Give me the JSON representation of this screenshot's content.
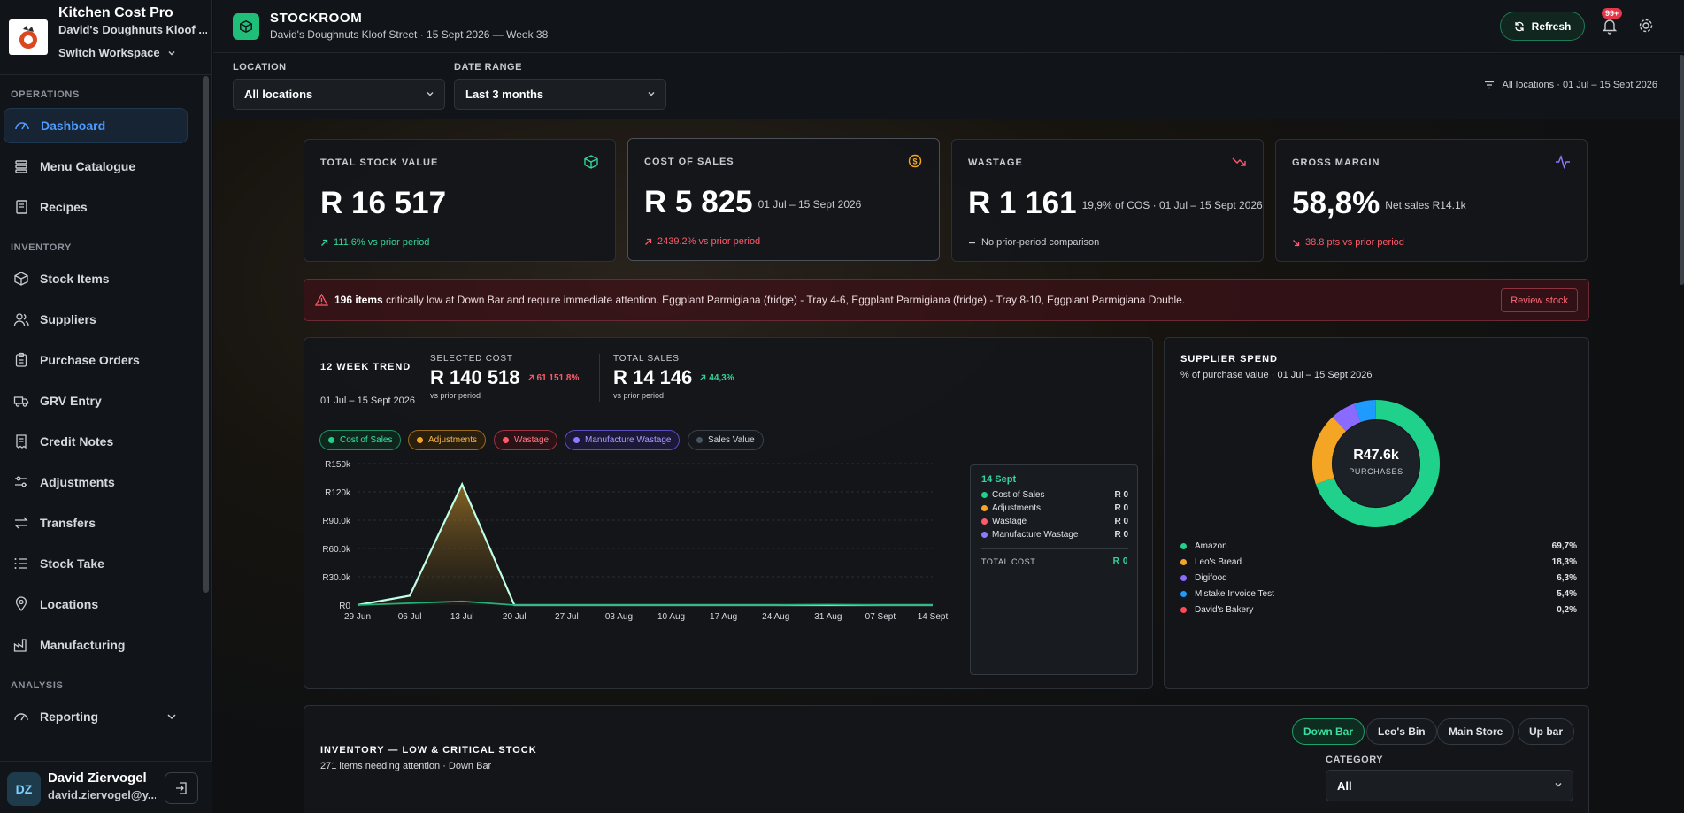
{
  "brand": {
    "title": "Kitchen Cost Pro",
    "workspace": "David's Doughnuts Kloof ...",
    "switch_label": "Switch Workspace"
  },
  "nav": {
    "operations_label": "OPERATIONS",
    "inventory_label": "INVENTORY",
    "analysis_label": "ANALYSIS",
    "items": [
      {
        "label": "Dashboard",
        "icon": "dashboard-icon"
      },
      {
        "label": "Menu Catalogue",
        "icon": "stack-icon"
      },
      {
        "label": "Recipes",
        "icon": "book-icon"
      },
      {
        "label": "Stock Items",
        "icon": "box-icon"
      },
      {
        "label": "Suppliers",
        "icon": "users-icon"
      },
      {
        "label": "Purchase Orders",
        "icon": "clipboard-icon"
      },
      {
        "label": "GRV Entry",
        "icon": "truck-icon"
      },
      {
        "label": "Credit Notes",
        "icon": "receipt-icon"
      },
      {
        "label": "Adjustments",
        "icon": "sliders-icon"
      },
      {
        "label": "Transfers",
        "icon": "transfer-icon"
      },
      {
        "label": "Stock Take",
        "icon": "list-icon"
      },
      {
        "label": "Locations",
        "icon": "pin-icon"
      },
      {
        "label": "Manufacturing",
        "icon": "factory-icon"
      },
      {
        "label": "Reporting",
        "icon": "gauge-icon"
      }
    ]
  },
  "user": {
    "initials": "DZ",
    "name": "David Ziervogel",
    "email": "david.ziervogel@y..."
  },
  "header": {
    "title": "STOCKROOM",
    "subtitle": "David's Doughnuts Kloof Street · 15 Sept 2026 — Week 38",
    "refresh_label": "Refresh",
    "notif_count": "99+"
  },
  "filters": {
    "location_label": "LOCATION",
    "location_value": "All locations",
    "date_label": "DATE RANGE",
    "date_value": "Last 3 months",
    "summary": "All locations · 01 Jul – 15 Sept 2026"
  },
  "kpis": [
    {
      "label": "TOTAL STOCK VALUE",
      "value": "R 16 517",
      "note": "",
      "delta": "111.6% vs prior period",
      "delta_color": "#35d49a",
      "icon_color": "#35d49a"
    },
    {
      "label": "COST OF SALES",
      "value": "R 5 825",
      "note": "01 Jul – 15 Sept 2026",
      "delta": "2439.2% vs prior period",
      "delta_color": "#ff5a6a",
      "icon_color": "#f5a524"
    },
    {
      "label": "WASTAGE",
      "value": "R 1 161",
      "note": "19,9% of COS · 01 Jul – 15 Sept 2026",
      "delta": "No prior-period comparison",
      "delta_color": "#c8ccd1",
      "icon_color": "#ff5a6a"
    },
    {
      "label": "GROSS MARGIN",
      "value": "58,8%",
      "note": "Net sales R14.1k",
      "delta": "38.8 pts vs prior period",
      "delta_color": "#ff5a6a",
      "icon_color": "#8b7bff"
    }
  ],
  "alert": {
    "count": "196 items",
    "message": " critically low at Down Bar and require immediate attention. Eggplant Parmigiana (fridge) - Tray 4-6, Eggplant Parmigiana (fridge) - Tray 8-10, Eggplant Parmigiana Double.",
    "button": "Review stock"
  },
  "trend": {
    "title": "12 WEEK TREND",
    "range": "01 Jul – 15 Sept 2026",
    "selected_label": "SELECTED COST",
    "selected_value": "R 140 518",
    "selected_delta": "61 151,8%",
    "total_label": "TOTAL SALES",
    "total_value": "R 14 146",
    "total_delta": "44,3%",
    "vs_label": "vs prior period",
    "filters": [
      {
        "label": "Cost of Sales",
        "color": "#1fd18b"
      },
      {
        "label": "Adjustments",
        "color": "#f5a524"
      },
      {
        "label": "Wastage",
        "color": "#ff5a6a"
      },
      {
        "label": "Manufacture Wastage",
        "color": "#8b7bff"
      },
      {
        "label": "Sales Value",
        "color": "#4a5560"
      }
    ],
    "tooltip": {
      "date": "14 Sept",
      "rows": [
        {
          "label": "Cost of Sales",
          "value": "R 0",
          "color": "#1fd18b"
        },
        {
          "label": "Adjustments",
          "value": "R 0",
          "color": "#f5a524"
        },
        {
          "label": "Wastage",
          "value": "R 0",
          "color": "#ff5a6a"
        },
        {
          "label": "Manufacture Wastage",
          "value": "R 0",
          "color": "#8b7bff"
        }
      ],
      "total_label": "TOTAL COST",
      "total_value": "R 0"
    }
  },
  "chart_data": [
    {
      "type": "area",
      "title": "12 WEEK TREND",
      "categories": [
        "29 Jun",
        "06 Jul",
        "13 Jul",
        "20 Jul",
        "27 Jul",
        "03 Aug",
        "10 Aug",
        "17 Aug",
        "24 Aug",
        "31 Aug",
        "07 Sept",
        "14 Sept"
      ],
      "series": [
        {
          "name": "Cost of Sales",
          "color": "#1fd18b",
          "values": [
            0,
            10000,
            128000,
            0,
            0,
            0,
            0,
            0,
            0,
            0,
            0,
            0
          ]
        },
        {
          "name": "Sales Value",
          "color": "#22b07a",
          "values": [
            0,
            2000,
            4000,
            0,
            0,
            0,
            0,
            0,
            0,
            500,
            0,
            0
          ]
        }
      ],
      "yticks": [
        "R0",
        "R30.0k",
        "R60.0k",
        "R90.0k",
        "R120k",
        "R150k"
      ],
      "ylim": [
        0,
        150000
      ],
      "grid": true
    },
    {
      "type": "pie",
      "title": "SUPPLIER SPEND",
      "subtitle": "% of purchase value · 01 Jul – 15 Sept 2026",
      "center_value": "R47.6k",
      "center_label": "PURCHASES",
      "slices": [
        {
          "name": "Amazon",
          "pct": "69,7%",
          "value": 69.7,
          "color": "#1fd18b"
        },
        {
          "name": "Leo's Bread",
          "pct": "18,3%",
          "value": 18.3,
          "color": "#f5a524"
        },
        {
          "name": "Digifood",
          "pct": "6,3%",
          "value": 6.3,
          "color": "#8b6bff"
        },
        {
          "name": "Mistake Invoice Test",
          "pct": "5,4%",
          "value": 5.4,
          "color": "#1e9bff"
        },
        {
          "name": "David's Bakery",
          "pct": "0,2%",
          "value": 0.2,
          "color": "#ff4a5a"
        }
      ]
    }
  ],
  "inventory": {
    "title": "INVENTORY — LOW & CRITICAL STOCK",
    "subtitle": "271 items needing attention · Down Bar",
    "tabs": [
      "Down Bar",
      "Leo's Bin",
      "Main Store",
      "Up bar"
    ],
    "category_label": "CATEGORY",
    "category_value": "All"
  }
}
